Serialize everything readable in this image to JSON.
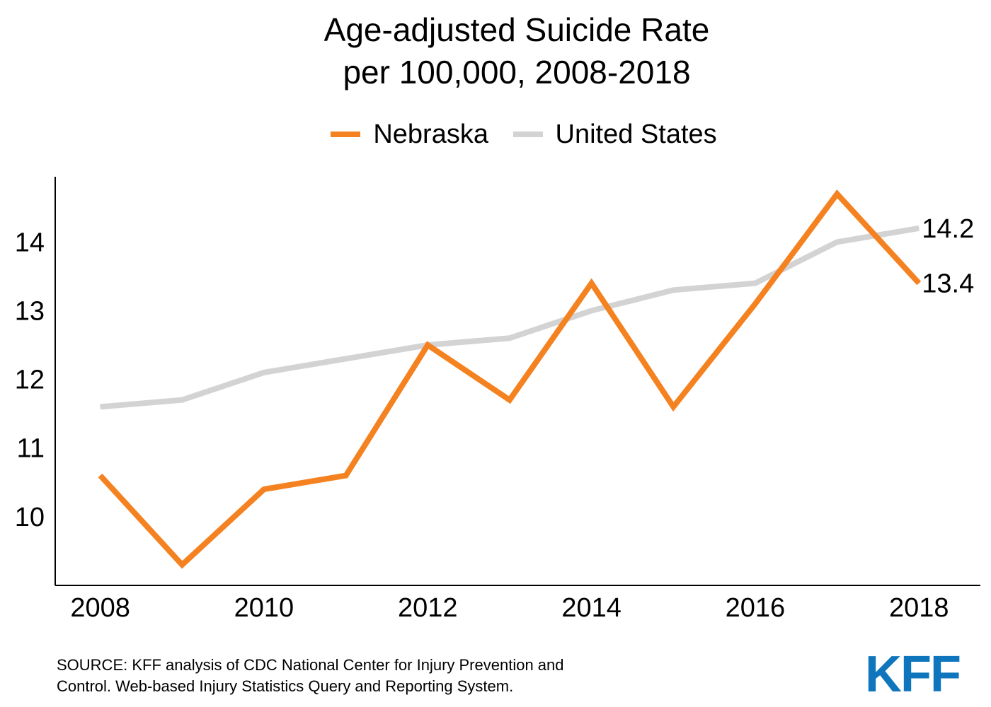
{
  "title_line1": "Age-adjusted Suicide Rate",
  "title_line2": "per 100,000, 2008-2018",
  "legend": [
    {
      "label": "Nebraska",
      "color": "#f58220"
    },
    {
      "label": "United States",
      "color": "#d3d3d3"
    }
  ],
  "source_line1": "SOURCE: KFF analysis of CDC National Center for Injury Prevention and",
  "source_line2": "Control. Web-based Injury Statistics Query and Reporting System.",
  "logo_text": "KFF",
  "logo_color": "#0f75bc",
  "chart_data": {
    "type": "line",
    "title": "Age-adjusted Suicide Rate per 100,000, 2008-2018",
    "x": [
      2008,
      2009,
      2010,
      2011,
      2012,
      2013,
      2014,
      2015,
      2016,
      2017,
      2018
    ],
    "xticks": [
      "2008",
      "2010",
      "2012",
      "2014",
      "2016",
      "2018"
    ],
    "yticks": [
      "10",
      "11",
      "12",
      "13",
      "14"
    ],
    "xlim": [
      2007.45,
      2018.75
    ],
    "ylim": [
      9.0,
      14.95
    ],
    "series": [
      {
        "name": "Nebraska",
        "color": "#f58220",
        "values": [
          10.6,
          9.3,
          10.4,
          10.6,
          12.5,
          11.7,
          13.4,
          11.6,
          13.1,
          14.7,
          13.4
        ],
        "end_label": "13.4"
      },
      {
        "name": "United States",
        "color": "#d3d3d3",
        "values": [
          11.6,
          11.7,
          12.1,
          12.3,
          12.5,
          12.6,
          13.0,
          13.3,
          13.4,
          14.0,
          14.2
        ],
        "end_label": "14.2"
      }
    ],
    "xlabel": "",
    "ylabel": "",
    "grid": false,
    "legend_position": "top"
  }
}
